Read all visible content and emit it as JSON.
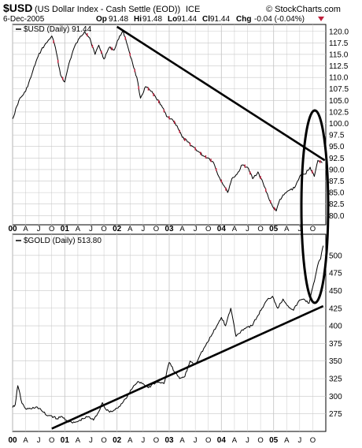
{
  "header": {
    "symbol": "$USD",
    "description": "(US Dollar Index - Cash Settle (EOD))",
    "exchange": "ICE",
    "date": "6-Dec-2005",
    "source": "© StockCharts.com",
    "op_label": "Op",
    "op_value": "91.48",
    "hi_label": "Hi",
    "hi_value": "91.48",
    "lo_label": "Lo",
    "lo_value": "91.44",
    "cl_label": "Cl",
    "cl_value": "91.44",
    "chg_label": "Chg",
    "chg_value": "-0.04 (-0.04%)"
  },
  "colors": {
    "background": "#ffffff",
    "grid": "#c8c8c8",
    "price_line": "#000000",
    "down_bar": "#c0203c",
    "trend": "#000000"
  },
  "x_ticks": [
    {
      "label": "00",
      "t": 2000.0,
      "bold": true
    },
    {
      "label": "A",
      "t": 2000.25
    },
    {
      "label": "J",
      "t": 2000.5
    },
    {
      "label": "O",
      "t": 2000.75
    },
    {
      "label": "01",
      "t": 2001.0,
      "bold": true
    },
    {
      "label": "A",
      "t": 2001.25
    },
    {
      "label": "J",
      "t": 2001.5
    },
    {
      "label": "O",
      "t": 2001.75
    },
    {
      "label": "02",
      "t": 2002.0,
      "bold": true
    },
    {
      "label": "A",
      "t": 2002.25
    },
    {
      "label": "J",
      "t": 2002.5
    },
    {
      "label": "O",
      "t": 2002.75
    },
    {
      "label": "03",
      "t": 2003.0,
      "bold": true
    },
    {
      "label": "A",
      "t": 2003.25
    },
    {
      "label": "J",
      "t": 2003.5
    },
    {
      "label": "O",
      "t": 2003.75
    },
    {
      "label": "04",
      "t": 2004.0,
      "bold": true
    },
    {
      "label": "A",
      "t": 2004.25
    },
    {
      "label": "J",
      "t": 2004.5
    },
    {
      "label": "O",
      "t": 2004.75
    },
    {
      "label": "05",
      "t": 2005.0,
      "bold": true
    },
    {
      "label": "A",
      "t": 2005.25
    },
    {
      "label": "J",
      "t": 2005.5
    },
    {
      "label": "O",
      "t": 2005.75
    }
  ],
  "chart_data": [
    {
      "type": "line",
      "subtype": "price-bars",
      "legend": "$USD (Daily) 91.44",
      "ylim": [
        78.0,
        121.5
      ],
      "y_ticks": [
        80.0,
        82.5,
        85.0,
        87.5,
        90.0,
        92.5,
        95.0,
        97.5,
        100.0,
        102.5,
        105.0,
        107.5,
        110.0,
        112.5,
        115.0,
        117.5,
        120.0
      ],
      "grid": true,
      "series": [
        {
          "name": "$USD",
          "x": [
            2000.0,
            2000.12,
            2000.25,
            2000.35,
            2000.45,
            2000.55,
            2000.65,
            2000.75,
            2000.82,
            2000.92,
            2001.0,
            2001.08,
            2001.18,
            2001.28,
            2001.38,
            2001.48,
            2001.58,
            2001.65,
            2001.75,
            2001.85,
            2001.95,
            2002.05,
            2002.12,
            2002.2,
            2002.3,
            2002.38,
            2002.45,
            2002.55,
            2002.65,
            2002.75,
            2002.85,
            2002.95,
            2003.05,
            2003.15,
            2003.25,
            2003.35,
            2003.45,
            2003.55,
            2003.65,
            2003.75,
            2003.85,
            2003.95,
            2004.05,
            2004.12,
            2004.2,
            2004.3,
            2004.4,
            2004.5,
            2004.6,
            2004.7,
            2004.8,
            2004.9,
            2004.98,
            2005.05,
            2005.12,
            2005.2,
            2005.3,
            2005.4,
            2005.5,
            2005.6,
            2005.7,
            2005.78,
            2005.85,
            2005.93
          ],
          "values": [
            101.0,
            105.0,
            107.0,
            110.0,
            113.5,
            116.0,
            117.5,
            119.0,
            116.5,
            110.5,
            109.0,
            113.0,
            116.5,
            118.5,
            120.0,
            118.5,
            115.0,
            117.0,
            114.0,
            116.5,
            116.0,
            119.0,
            120.0,
            117.0,
            113.0,
            110.0,
            105.5,
            108.0,
            107.0,
            105.5,
            104.0,
            101.5,
            101.0,
            99.5,
            97.0,
            96.0,
            95.0,
            94.0,
            93.0,
            92.5,
            91.5,
            88.5,
            86.5,
            85.0,
            88.0,
            89.0,
            91.0,
            90.5,
            88.0,
            89.5,
            87.0,
            84.0,
            82.0,
            81.0,
            83.5,
            84.5,
            85.5,
            86.0,
            88.5,
            89.0,
            90.5,
            88.5,
            92.0,
            91.44
          ]
        },
        {
          "name": "trendline",
          "x": [
            2002.0,
            2005.98
          ],
          "values": [
            121.0,
            92.0
          ]
        }
      ]
    },
    {
      "type": "line",
      "legend": "$GOLD (Daily) 513.80",
      "ylim": [
        250.0,
        530.0
      ],
      "y_ticks": [
        275,
        300,
        325,
        350,
        375,
        400,
        425,
        450,
        475,
        500
      ],
      "grid": true,
      "series": [
        {
          "name": "$GOLD",
          "x": [
            2000.0,
            2000.05,
            2000.1,
            2000.18,
            2000.25,
            2000.35,
            2000.45,
            2000.55,
            2000.65,
            2000.75,
            2000.85,
            2000.95,
            2001.05,
            2001.15,
            2001.25,
            2001.35,
            2001.45,
            2001.55,
            2001.65,
            2001.72,
            2001.8,
            2001.9,
            2002.0,
            2002.1,
            2002.2,
            2002.3,
            2002.4,
            2002.5,
            2002.6,
            2002.7,
            2002.8,
            2002.9,
            2003.0,
            2003.1,
            2003.2,
            2003.3,
            2003.4,
            2003.5,
            2003.6,
            2003.7,
            2003.8,
            2003.9,
            2004.0,
            2004.08,
            2004.18,
            2004.28,
            2004.38,
            2004.48,
            2004.58,
            2004.68,
            2004.78,
            2004.88,
            2004.98,
            2005.08,
            2005.18,
            2005.28,
            2005.38,
            2005.48,
            2005.58,
            2005.68,
            2005.75,
            2005.8,
            2005.86,
            2005.9,
            2005.95
          ],
          "values": [
            284.0,
            288.0,
            315.0,
            290.0,
            282.0,
            282.0,
            285.0,
            280.0,
            273.0,
            272.0,
            268.0,
            271.0,
            265.0,
            262.0,
            264.0,
            268.0,
            271.0,
            266.0,
            278.0,
            291.0,
            280.0,
            278.0,
            283.0,
            290.0,
            300.0,
            312.0,
            321.0,
            318.0,
            312.0,
            318.0,
            320.0,
            318.0,
            348.0,
            335.0,
            325.0,
            328.0,
            350.0,
            345.0,
            360.0,
            372.0,
            385.0,
            398.0,
            412.0,
            400.0,
            425.0,
            385.0,
            393.0,
            398.0,
            400.0,
            412.0,
            425.0,
            437.0,
            442.0,
            425.0,
            438.0,
            428.0,
            422.0,
            435.0,
            438.0,
            432.0,
            455.0,
            470.0,
            490.0,
            495.0,
            513.8
          ]
        },
        {
          "name": "trendline",
          "x": [
            2000.75,
            2005.95
          ],
          "values": [
            254.0,
            428.0
          ]
        }
      ]
    }
  ]
}
